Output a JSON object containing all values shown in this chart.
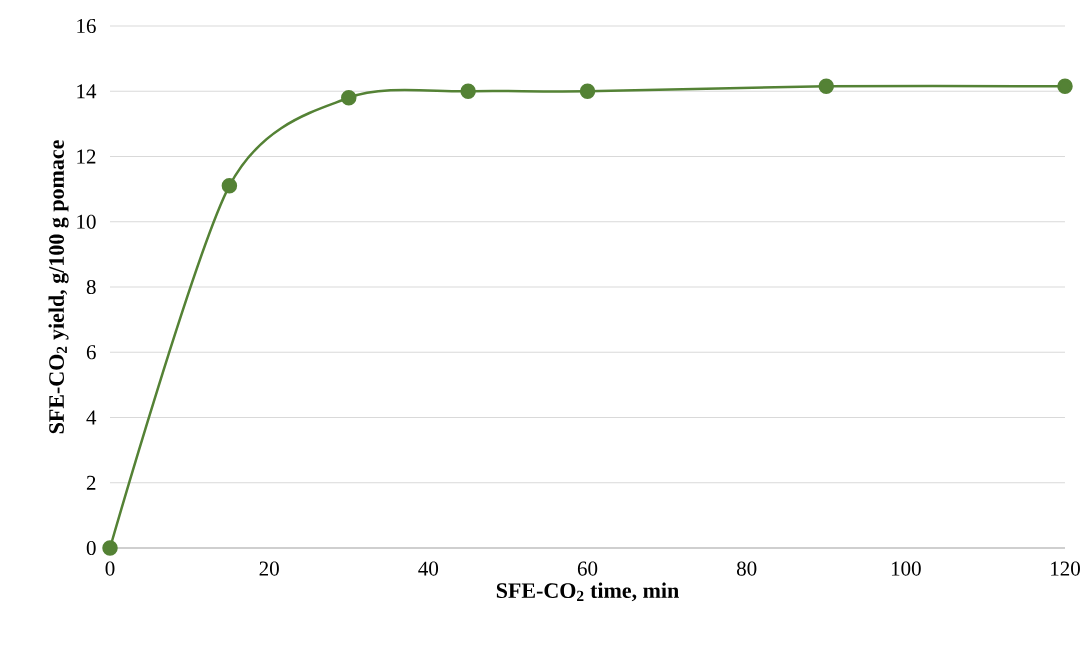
{
  "chart_data": {
    "type": "line",
    "xlabel": "SFE-CO$_{2}$ time, min",
    "ylabel": "SFE-CO$_{2}$ yield, g/100 g pomace",
    "x": [
      0,
      15,
      30,
      45,
      60,
      90,
      120
    ],
    "series": [
      {
        "color": "#548235",
        "values": [
          0,
          11.1,
          13.8,
          14.0,
          14.0,
          14.15,
          14.15
        ]
      }
    ],
    "xlim": [
      0,
      120
    ],
    "xticks": [
      0,
      20,
      40,
      60,
      80,
      100,
      120
    ],
    "ylim": [
      0,
      16
    ],
    "yticks": [
      0,
      2,
      4,
      6,
      8,
      10,
      12,
      14,
      16
    ],
    "grid": "y",
    "marker": "circle",
    "line_style": "solid"
  }
}
